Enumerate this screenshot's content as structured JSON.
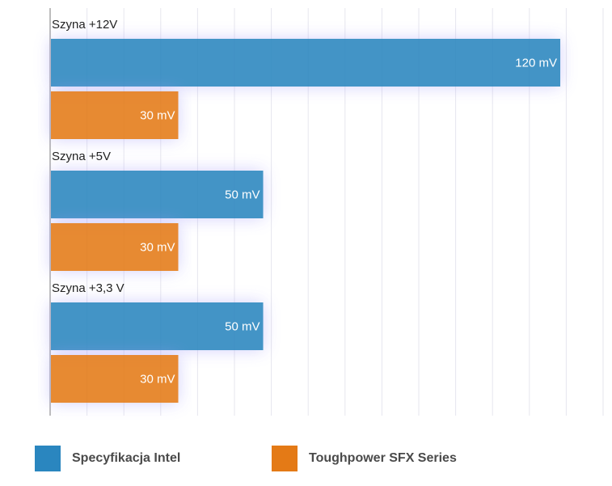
{
  "chart_data": {
    "type": "bar",
    "orientation": "horizontal",
    "categories": [
      "Szyna +12V",
      "Szyna +5V",
      "Szyna +3,3 V"
    ],
    "unit": "mV",
    "series": [
      {
        "name": "Specyfikacja Intel",
        "values": [
          120,
          50,
          50
        ],
        "labels": [
          "120 mV",
          "50 mV",
          "50 mV"
        ],
        "color": "#2a86bf"
      },
      {
        "name": "Toughpower SFX Series",
        "values": [
          30,
          30,
          30
        ],
        "labels": [
          "30 mV",
          "30 mV",
          "30 mV"
        ],
        "color": "#e47a16"
      }
    ],
    "xlim": [
      0,
      130
    ],
    "grid": true,
    "legend": "bottom"
  }
}
